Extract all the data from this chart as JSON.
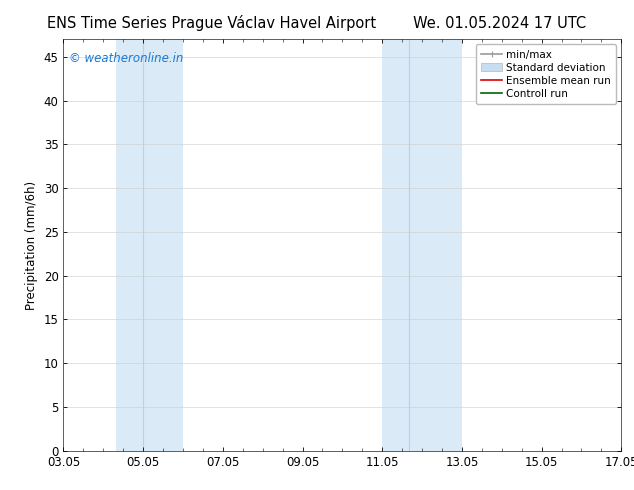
{
  "title_left": "ENS Time Series Prague Václav Havel Airport",
  "title_right": "We. 01.05.2024 17 UTC",
  "ylabel": "Precipitation (mm/6h)",
  "ylim": [
    0,
    47
  ],
  "yticks": [
    0,
    5,
    10,
    15,
    20,
    25,
    30,
    35,
    40,
    45
  ],
  "xtick_labels": [
    "03.05",
    "05.05",
    "07.05",
    "09.05",
    "11.05",
    "13.05",
    "15.05",
    "17.05"
  ],
  "xtick_positions": [
    0,
    2,
    4,
    6,
    8,
    10,
    12,
    14
  ],
  "xlim": [
    0,
    14
  ],
  "shaded_bands": [
    {
      "x_start": 1.33,
      "x_end": 2.0
    },
    {
      "x_start": 2.0,
      "x_end": 3.0
    },
    {
      "x_start": 8.0,
      "x_end": 8.67
    },
    {
      "x_start": 8.67,
      "x_end": 10.0
    }
  ],
  "background_color": "#ffffff",
  "band_color": "#daeaf7",
  "band_sep_color": "#c0d8ee",
  "watermark_text": "© weatheronline.in",
  "watermark_color": "#1a7ad4",
  "legend_items": [
    {
      "label": "min/max",
      "color": "#999999",
      "lw": 1.2
    },
    {
      "label": "Standard deviation",
      "color": "#c8ddf0",
      "lw": 8
    },
    {
      "label": "Ensemble mean run",
      "color": "#dd0000",
      "lw": 1.2
    },
    {
      "label": "Controll run",
      "color": "#006600",
      "lw": 1.2
    }
  ],
  "title_fontsize": 10.5,
  "ylabel_fontsize": 8.5,
  "tick_fontsize": 8.5,
  "legend_fontsize": 7.5,
  "watermark_fontsize": 8.5
}
